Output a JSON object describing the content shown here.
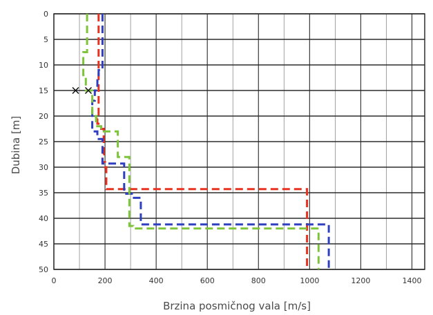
{
  "chart_data": {
    "type": "line",
    "xlabel": "Brzina posmičnog vala [m/s]",
    "ylabel": "Dubina [m]",
    "xlim": [
      0,
      1450
    ],
    "ylim": [
      50,
      0
    ],
    "x_ticks": [
      0,
      200,
      400,
      600,
      800,
      1000,
      1200,
      1400
    ],
    "y_ticks": [
      0,
      5,
      10,
      15,
      20,
      25,
      30,
      35,
      40,
      45,
      50
    ],
    "y_inverted": true,
    "grid": true,
    "series": [
      {
        "color": "#e8311f",
        "style": "dashed",
        "points": [
          [
            175,
            0
          ],
          [
            175,
            20.5
          ],
          [
            170,
            20.5
          ],
          [
            170,
            21.5
          ],
          [
            185,
            21.5
          ],
          [
            185,
            22.5
          ],
          [
            195,
            22.5
          ],
          [
            195,
            27.5
          ],
          [
            190,
            27.5
          ],
          [
            190,
            29
          ],
          [
            200,
            29
          ],
          [
            200,
            30
          ],
          [
            205,
            30
          ],
          [
            205,
            34.3
          ],
          [
            990,
            34.3
          ],
          [
            990,
            50
          ]
        ]
      },
      {
        "color": "#2e3fbf",
        "style": "dashed",
        "points": [
          [
            190,
            0
          ],
          [
            190,
            11
          ],
          [
            175,
            11
          ],
          [
            175,
            13
          ],
          [
            170,
            13
          ],
          [
            170,
            15
          ],
          [
            160,
            15
          ],
          [
            160,
            17
          ],
          [
            150,
            17
          ],
          [
            150,
            23
          ],
          [
            170,
            23
          ],
          [
            170,
            24.5
          ],
          [
            190,
            24.5
          ],
          [
            190,
            29.3
          ],
          [
            275,
            29.3
          ],
          [
            275,
            35.2
          ],
          [
            305,
            35.2
          ],
          [
            305,
            36
          ],
          [
            340,
            36
          ],
          [
            340,
            41.2
          ],
          [
            1075,
            41.2
          ],
          [
            1075,
            50
          ]
        ]
      },
      {
        "color": "#7ec43a",
        "style": "dashed",
        "points": [
          [
            130,
            0
          ],
          [
            130,
            7.5
          ],
          [
            115,
            7.5
          ],
          [
            115,
            12
          ],
          [
            125,
            12
          ],
          [
            125,
            15
          ],
          [
            150,
            15
          ],
          [
            150,
            20
          ],
          [
            165,
            20
          ],
          [
            165,
            22
          ],
          [
            185,
            22
          ],
          [
            185,
            23
          ],
          [
            250,
            23
          ],
          [
            250,
            28
          ],
          [
            295,
            28
          ],
          [
            295,
            41.5
          ],
          [
            310,
            41.5
          ],
          [
            310,
            42
          ],
          [
            1035,
            42
          ],
          [
            1035,
            50
          ]
        ]
      }
    ],
    "markers": [
      {
        "symbol": "x",
        "x": 85,
        "y": 15
      },
      {
        "symbol": "x",
        "x": 135,
        "y": 15
      }
    ]
  }
}
